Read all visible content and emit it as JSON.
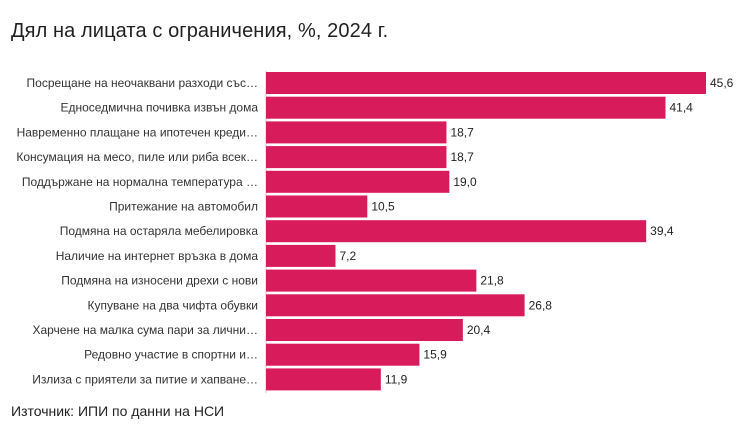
{
  "chart_data": {
    "type": "bar",
    "orientation": "horizontal",
    "title": "Дял на лицата с ограничения, %, 2024 г.",
    "source": "Източник: ИПИ по данни на НСИ",
    "xlabel": "",
    "ylabel": "",
    "xlim": [
      0,
      45.6
    ],
    "bar_color": "#D81B5A",
    "categories": [
      "Посрещане на неочаквани разходи със…",
      "Едноседмична почивка извън дома",
      "Навременно плащане на ипотечен креди…",
      "Консумация на месо, пиле или риба всек…",
      "Поддържане на нормална температура …",
      "Притежание на автомобил",
      "Подмяна на остаряла мебелировка",
      "Наличие на интернет връзка в дома",
      "Подмяна на износени дрехи с нови",
      "Купуване на два чифта обувки",
      "Харчене на малка сума пари за лични…",
      "Редовно участие в спортни и…",
      "Излиза с приятели за питие и хапване…"
    ],
    "values": [
      45.6,
      41.4,
      18.7,
      18.7,
      19.0,
      10.5,
      39.4,
      7.2,
      21.8,
      26.8,
      20.4,
      15.9,
      11.9
    ],
    "value_labels": [
      "45,6",
      "41,4",
      "18,7",
      "18,7",
      "19,0",
      "10,5",
      "39,4",
      "7,2",
      "21,8",
      "26,8",
      "20,4",
      "15,9",
      "11,9"
    ]
  }
}
